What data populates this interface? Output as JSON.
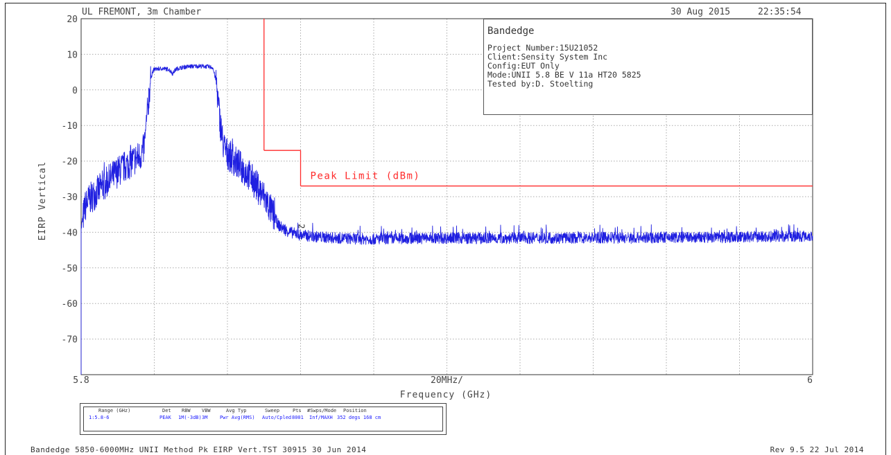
{
  "header": {
    "site": "UL FREMONT, 3m Chamber",
    "date": "30 Aug 2015",
    "time": "22:35:54"
  },
  "info_box": {
    "title": "Bandedge",
    "lines": [
      "Project Number:15U21052",
      "Client:Sensity System Inc",
      "Config:EUT Only",
      "Mode:UNII 5.8 BE V 11a HT20 5825",
      "Tested by:D. Stoelting"
    ]
  },
  "sweep_table": {
    "headers": [
      "Range (GHz)",
      "Det",
      "RBW",
      "VBW",
      "Avg Typ",
      "Sweep",
      "Pts",
      "#Swps/Mode",
      "Position"
    ],
    "values": [
      "1:5.8-6",
      "PEAK",
      "1M(-3dB)",
      "3M",
      "Pwr Avg(RMS)",
      "Auto/Cpled",
      "8001",
      "Inf/MAXH",
      "352 degs 168 cm"
    ]
  },
  "footer": {
    "left": "Bandedge 5850-6000MHz UNII Method Pk EIRP Vert.TST 30915 30 Jun 2014",
    "right": "Rev 9.5 22 Jul 2014"
  },
  "chart_data": {
    "type": "line",
    "title": "",
    "xlabel": "Frequency (GHz)",
    "ylabel": "EIRP Vertical",
    "xlim": [
      5.8,
      6.0
    ],
    "ylim": [
      -80,
      20
    ],
    "x_tick_labels": {
      "left": "5.8",
      "center": "20MHz/",
      "right": "6"
    },
    "y_ticks": [
      20,
      10,
      0,
      -10,
      -20,
      -30,
      -40,
      -50,
      -60,
      -70
    ],
    "grid": true,
    "limit_line": {
      "label": "Peak Limit (dBm)",
      "color": "#ff2a2a",
      "segments": [
        {
          "x": [
            5.85,
            5.85
          ],
          "y": [
            20,
            -17
          ]
        },
        {
          "x": [
            5.85,
            5.86
          ],
          "y": [
            -17,
            -17
          ]
        },
        {
          "x": [
            5.86,
            5.86
          ],
          "y": [
            -17,
            -27
          ]
        },
        {
          "x": [
            5.86,
            6.0
          ],
          "y": [
            -27,
            -27
          ]
        }
      ]
    },
    "marker": {
      "label": "2",
      "x": 5.86,
      "y": -38
    },
    "series": [
      {
        "color": "#1f1fe0",
        "x": [
          5.8,
          5.8,
          5.8005,
          5.801,
          5.802,
          5.804,
          5.806,
          5.808,
          5.81,
          5.812,
          5.814,
          5.8155,
          5.8165,
          5.817,
          5.8175,
          5.818,
          5.8185,
          5.819,
          5.8195,
          5.82,
          5.822,
          5.824,
          5.825,
          5.826,
          5.828,
          5.83,
          5.832,
          5.834,
          5.836,
          5.837,
          5.8375,
          5.838,
          5.8385,
          5.839,
          5.84,
          5.842,
          5.844,
          5.846,
          5.848,
          5.85,
          5.852,
          5.854,
          5.856,
          5.858,
          5.86,
          5.865,
          5.87,
          5.875,
          5.88,
          5.885,
          5.89,
          5.9,
          5.91,
          5.92,
          5.93,
          5.94,
          5.95,
          5.96,
          5.97,
          5.98,
          5.99,
          5.995,
          6.0
        ],
        "y": [
          -80,
          -39,
          -36,
          -33,
          -31,
          -29,
          -27,
          -25,
          -23,
          -21.5,
          -20,
          -19,
          -18,
          -17,
          -14,
          -8,
          -2,
          3,
          5,
          5.8,
          6.0,
          5.8,
          4.6,
          5.9,
          6.4,
          6.6,
          6.7,
          6.6,
          6.3,
          2.0,
          -4,
          -9,
          -13,
          -16,
          -18,
          -20,
          -22,
          -24,
          -27,
          -30,
          -34,
          -38,
          -39.5,
          -40.2,
          -40.8,
          -41.3,
          -41.6,
          -41.8,
          -41.9,
          -41.8,
          -41.7,
          -41.6,
          -41.7,
          -41.6,
          -41.6,
          -41.5,
          -41.6,
          -41.4,
          -41.5,
          -41.3,
          -41.2,
          -41.1,
          -41.0
        ]
      }
    ]
  }
}
